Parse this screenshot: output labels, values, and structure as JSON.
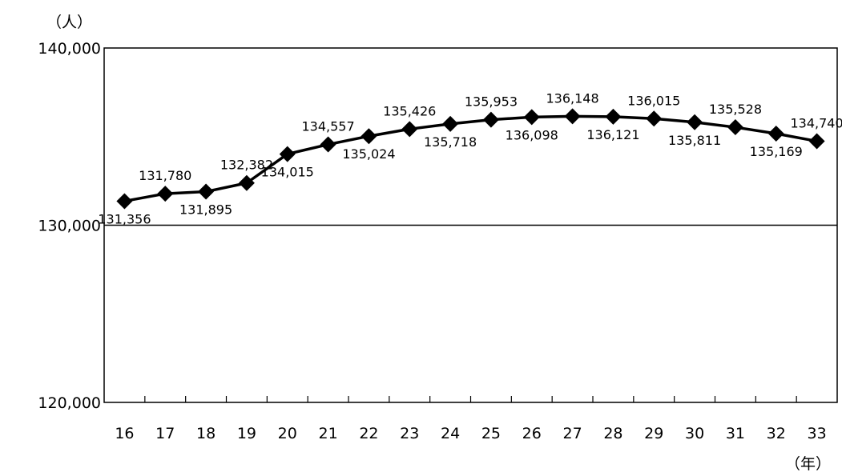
{
  "chart_data": {
    "type": "line",
    "ylabel": "（人）",
    "xlabel": "（年）",
    "ylim": [
      120000,
      140000
    ],
    "yticks": [
      "120,000",
      "130,000",
      "140,000"
    ],
    "y_tick_values": [
      120000,
      130000,
      140000
    ],
    "categories": [
      "16",
      "17",
      "18",
      "19",
      "20",
      "21",
      "22",
      "23",
      "24",
      "25",
      "26",
      "27",
      "28",
      "29",
      "30",
      "31",
      "32",
      "33"
    ],
    "series": [
      {
        "values": [
          131356,
          131780,
          131895,
          132382,
          134015,
          134557,
          135024,
          135426,
          135718,
          135953,
          136098,
          136148,
          136121,
          136015,
          135811,
          135528,
          135169,
          134740
        ],
        "labels": [
          "131,356",
          "131,780",
          "131,895",
          "132,382",
          "134,015",
          "134,557",
          "135,024",
          "135,426",
          "135,718",
          "135,953",
          "136,098",
          "136,148",
          "136,121",
          "136,015",
          "135,811",
          "135,528",
          "135,169",
          "134,740"
        ],
        "label_positions": [
          "below",
          "above",
          "below",
          "above",
          "below",
          "above",
          "below",
          "above",
          "below",
          "above",
          "below",
          "above",
          "below",
          "above",
          "below",
          "above",
          "below",
          "above"
        ]
      }
    ],
    "marker": "diamond",
    "line_color": "#000000",
    "gridline_values": [
      130000
    ]
  }
}
